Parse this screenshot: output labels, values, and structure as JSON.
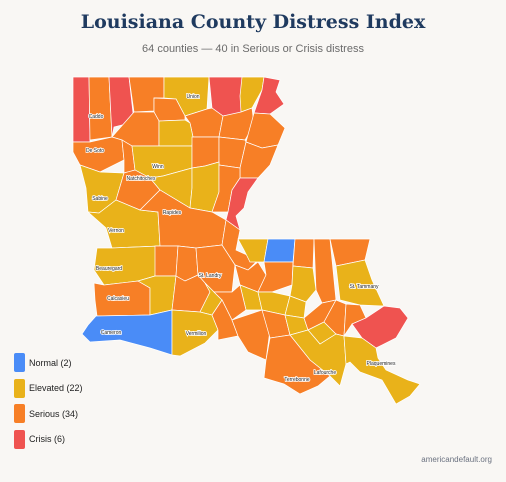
{
  "title": "Louisiana County Distress Index",
  "subtitle": "64 counties — 40 in Serious or Crisis distress",
  "source": "americandefault.org",
  "colors": {
    "normal": "#4a8cf7",
    "elevated": "#e9b21a",
    "serious": "#f77f26",
    "crisis": "#ef5350",
    "border": "#ffffff",
    "background": "#f9f7f4"
  },
  "legend": [
    {
      "label": "Normal (2)",
      "level": "normal"
    },
    {
      "label": "Elevated (22)",
      "level": "elevated"
    },
    {
      "label": "Serious (34)",
      "level": "serious"
    },
    {
      "label": "Crisis (6)",
      "level": "crisis"
    }
  ],
  "county_labels": [
    "Union",
    "Caddo",
    "De Soto",
    "Winn",
    "Natchitoches",
    "Sabine",
    "Rapides",
    "Vernon",
    "Beauregard",
    "St. Landry",
    "Calcasieu",
    "St. Tammany",
    "Cameron",
    "Vermilion",
    "Plaquemines",
    "Lafourche",
    "Terrebonne"
  ]
}
